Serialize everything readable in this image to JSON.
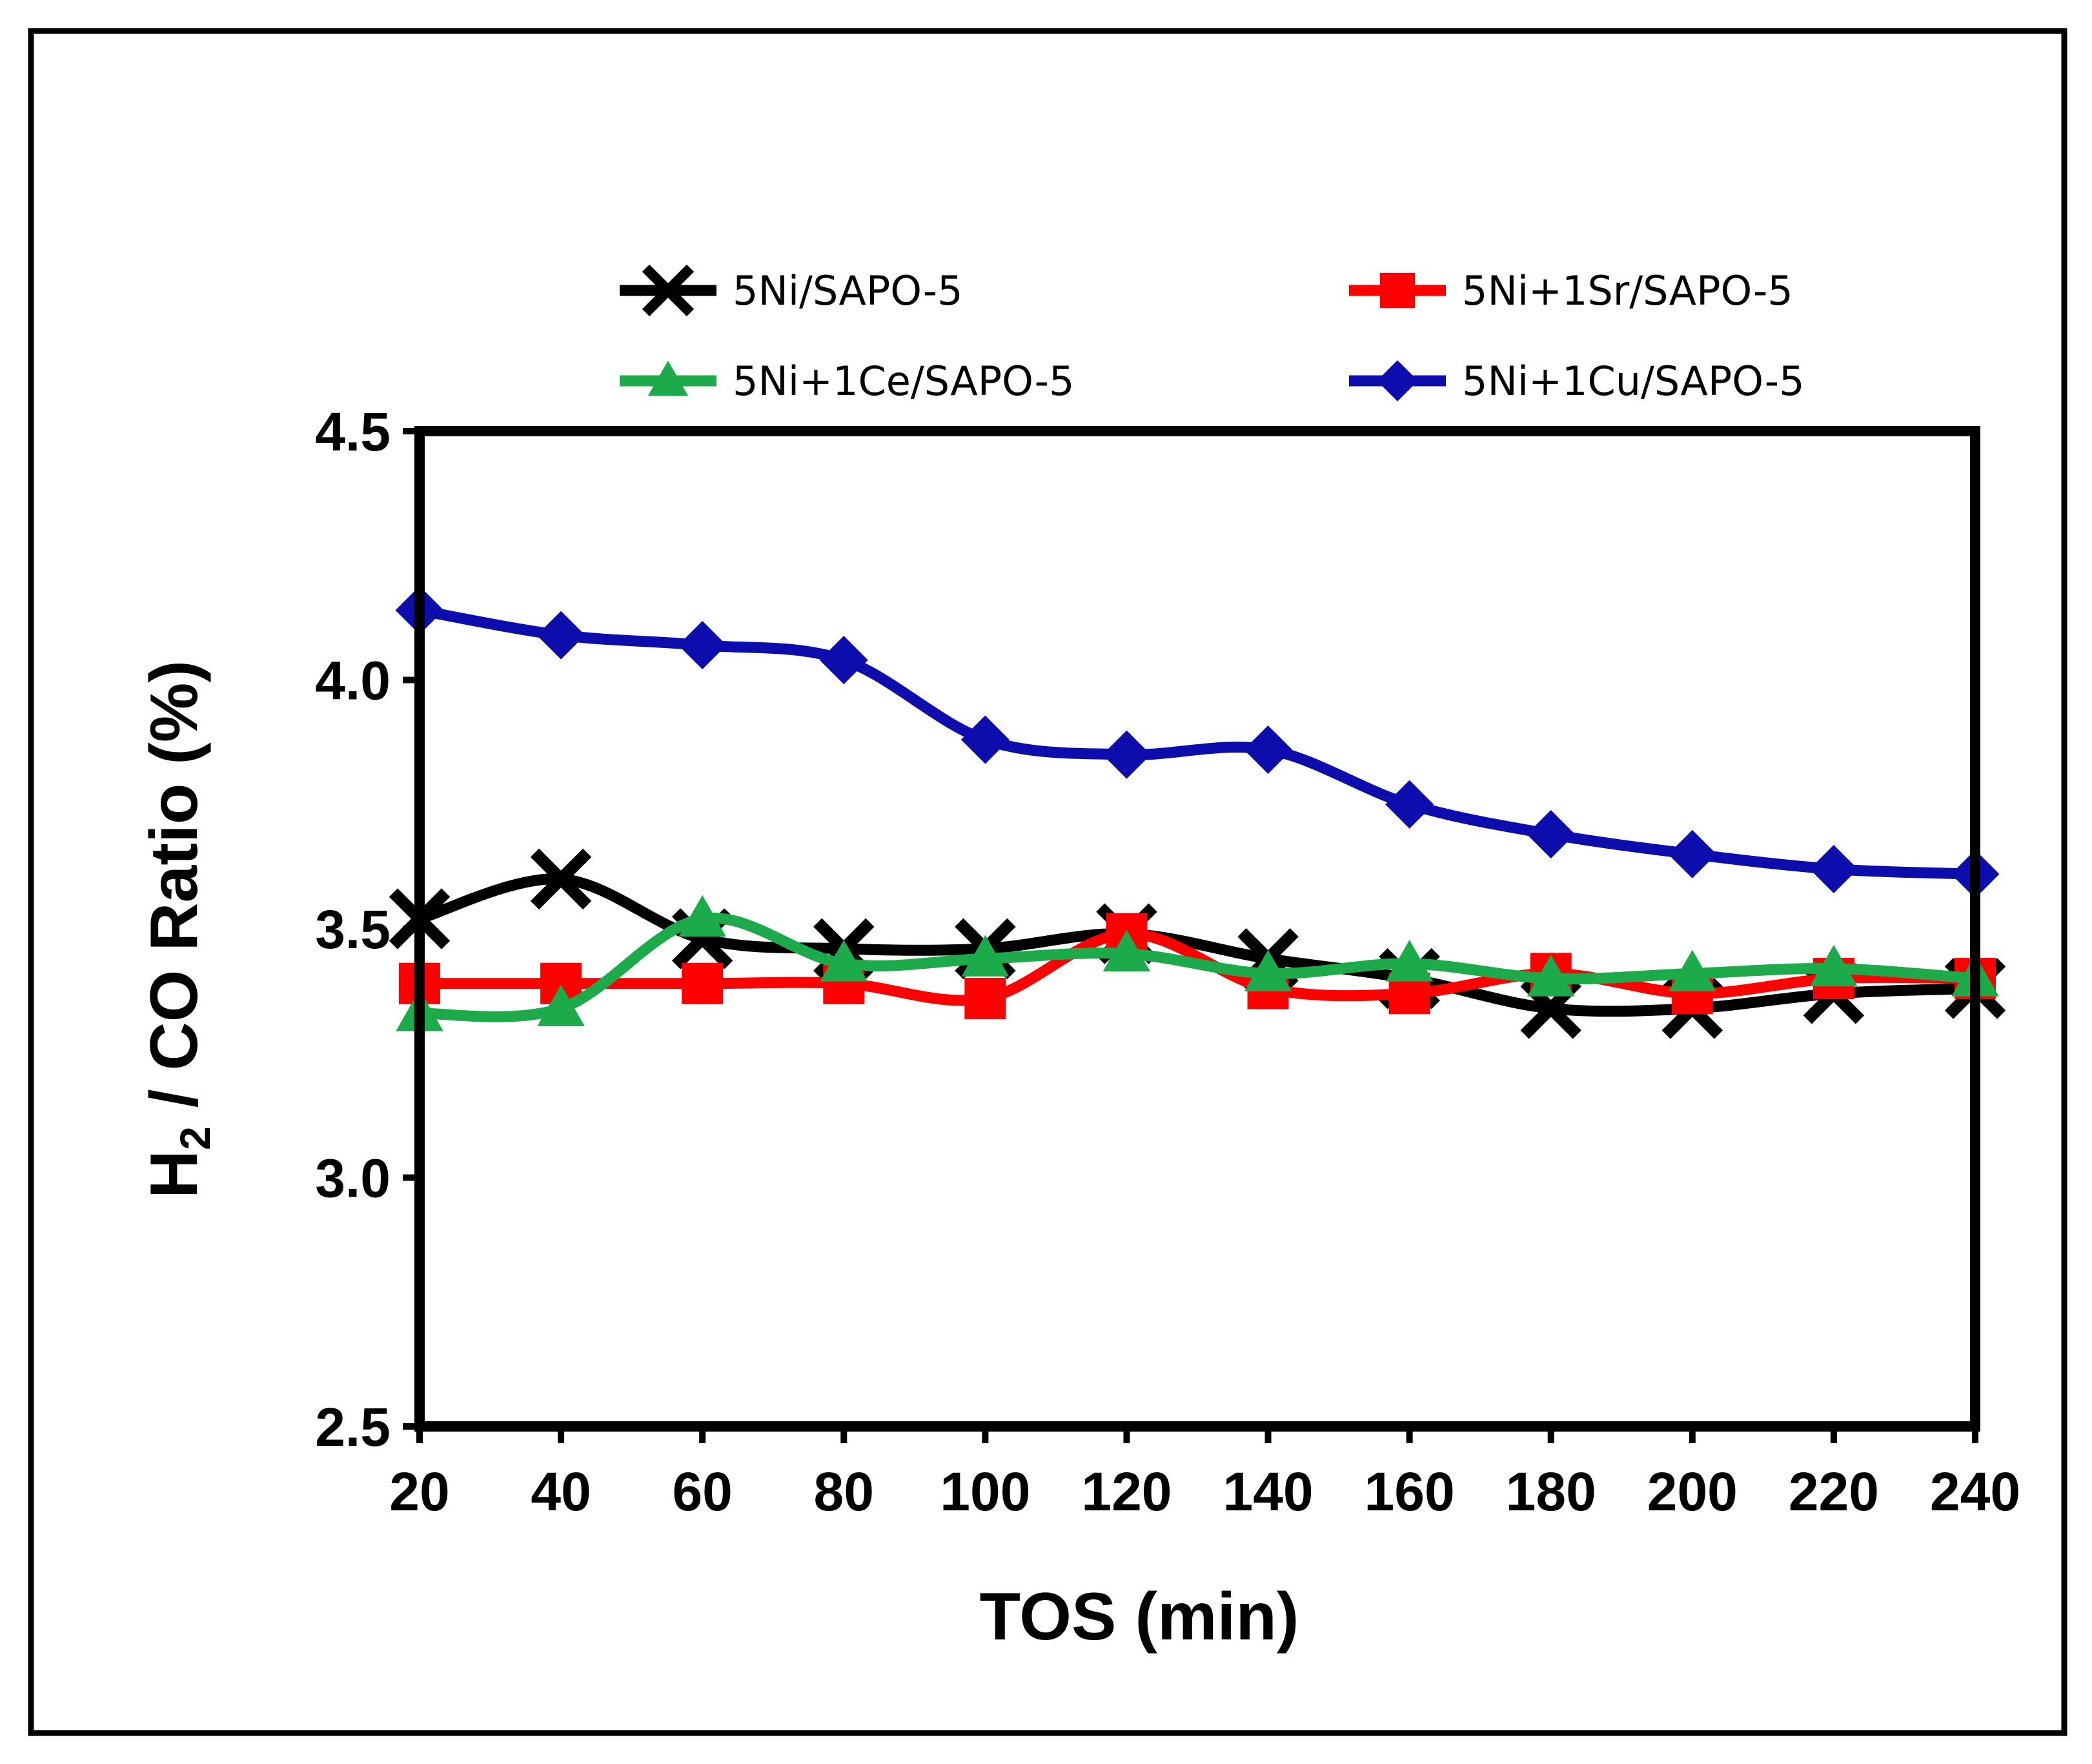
{
  "chart_data": {
    "type": "line",
    "x": [
      20,
      40,
      60,
      80,
      100,
      120,
      140,
      160,
      180,
      200,
      220,
      240
    ],
    "x_ticks": [
      "20",
      "40",
      "60",
      "80",
      "100",
      "120",
      "140",
      "160",
      "180",
      "200",
      "220",
      "240"
    ],
    "y_ticks": [
      "2.5",
      "3.0",
      "3.5",
      "4.0",
      "4.5"
    ],
    "xlim": [
      20,
      240
    ],
    "ylim": [
      2.5,
      4.5
    ],
    "xlabel": "TOS (min)",
    "ylabel": "H",
    "ylabel_subscript": "2",
    "ylabel_rest": " / CO Ratio (%)",
    "legend_position": "top",
    "grid": false,
    "series": [
      {
        "name": "5Ni/SAPO-5",
        "color": "#000000",
        "marker": "x",
        "values": [
          3.52,
          3.6,
          3.48,
          3.46,
          3.46,
          3.49,
          3.44,
          3.4,
          3.34,
          3.34,
          3.37,
          3.38
        ]
      },
      {
        "name": "5Ni+1Sr/SAPO-5",
        "color": "#ff0000",
        "marker": "square",
        "values": [
          3.39,
          3.39,
          3.39,
          3.39,
          3.36,
          3.49,
          3.38,
          3.37,
          3.41,
          3.37,
          3.4,
          3.4
        ]
      },
      {
        "name": "5Ni+1Ce/SAPO-5",
        "color": "#1daa4a",
        "marker": "triangle",
        "values": [
          3.33,
          3.34,
          3.52,
          3.43,
          3.44,
          3.45,
          3.41,
          3.43,
          3.4,
          3.41,
          3.42,
          3.4
        ]
      },
      {
        "name": "5Ni+1Cu/SAPO-5",
        "color": "#0d0dad",
        "marker": "diamond",
        "values": [
          4.14,
          4.09,
          4.07,
          4.04,
          3.88,
          3.85,
          3.86,
          3.75,
          3.69,
          3.65,
          3.62,
          3.61
        ]
      }
    ]
  }
}
